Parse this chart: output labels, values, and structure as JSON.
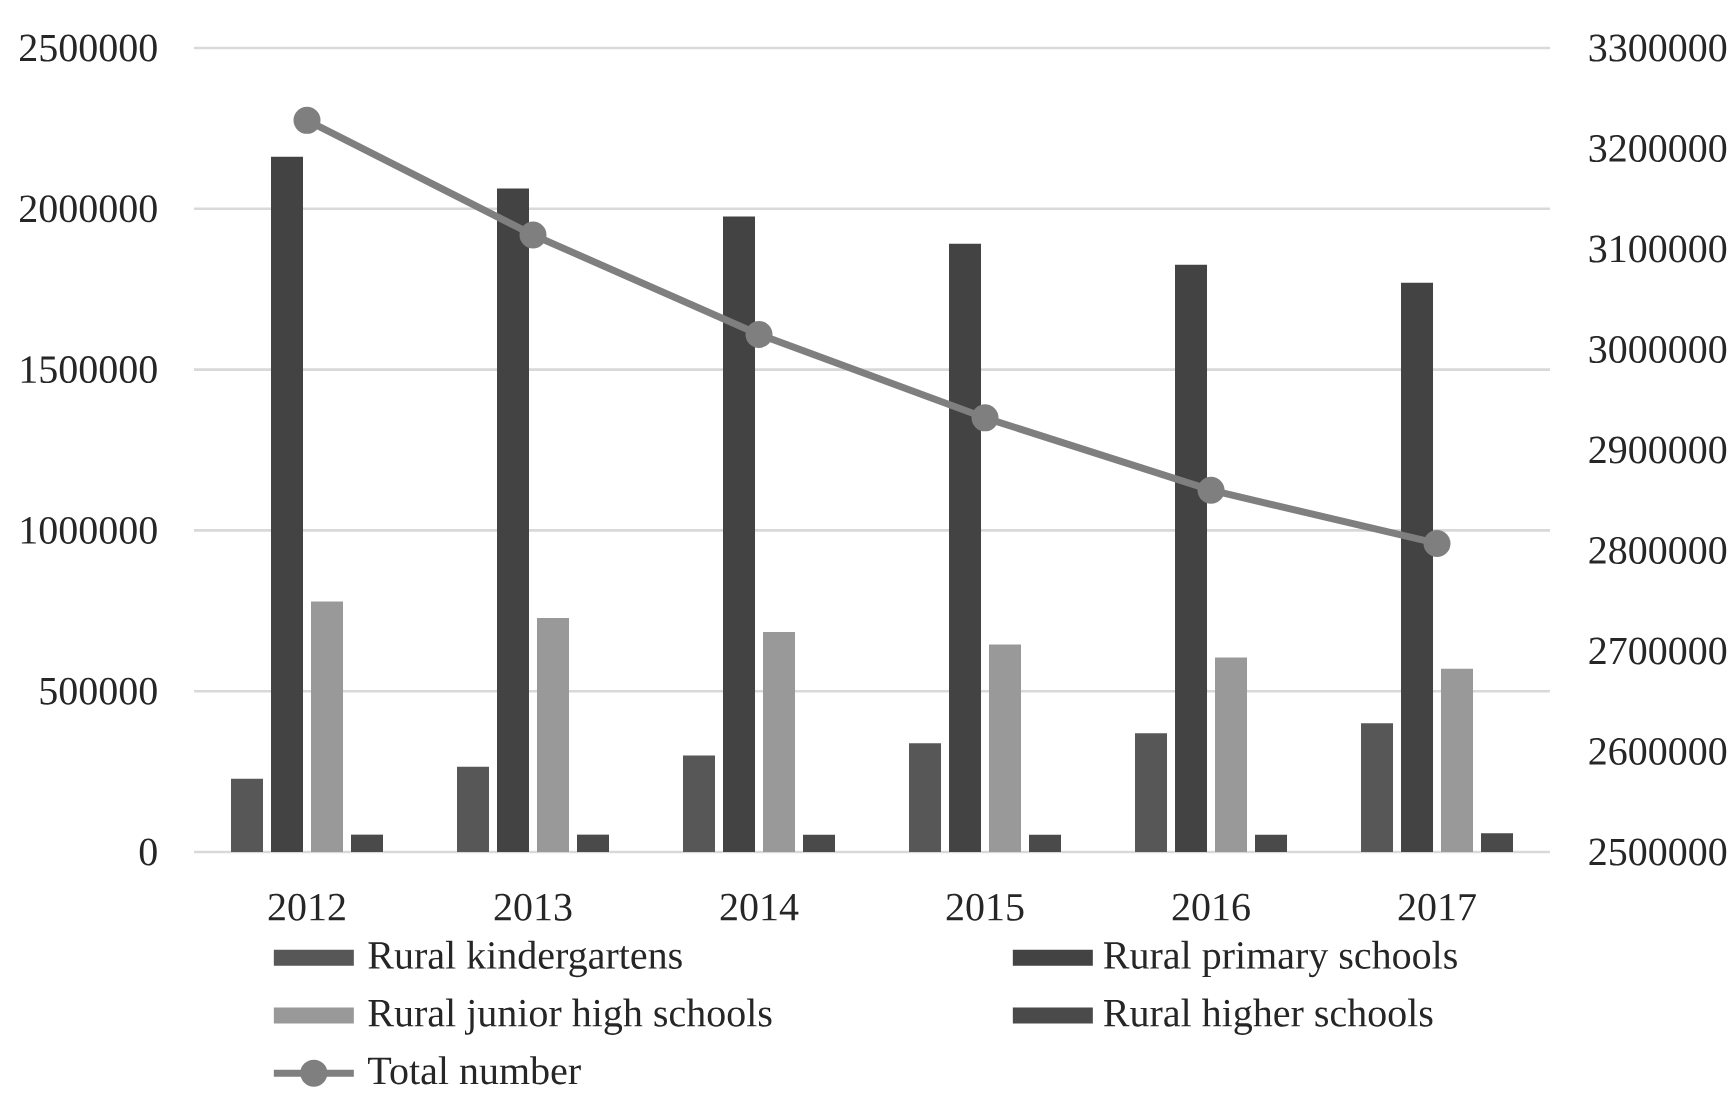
{
  "chart_data": {
    "type": "bar",
    "categories": [
      "2012",
      "2013",
      "2014",
      "2015",
      "2016",
      "2017"
    ],
    "series": [
      {
        "name": "Rural kindergartens",
        "color": "#575757",
        "values": [
          228000,
          265000,
          300000,
          338000,
          369000,
          400000
        ]
      },
      {
        "name": "Rural primary schools",
        "color": "#434343",
        "values": [
          2162000,
          2063000,
          1976000,
          1891000,
          1826000,
          1770000
        ]
      },
      {
        "name": "Rural junior high schools",
        "color": "#999999",
        "values": [
          779000,
          728000,
          684000,
          645000,
          605000,
          570000
        ]
      },
      {
        "name": "Rural higher schools",
        "color": "#4a4a4a",
        "values": [
          54000,
          54000,
          54000,
          54000,
          54000,
          58000
        ]
      },
      {
        "name": "Total number",
        "type": "line",
        "axis": "y2",
        "color": "#7f7f7f",
        "marker": "circle",
        "line_style": "solid",
        "values": [
          3228000,
          3114000,
          3015000,
          2932000,
          2860000,
          2807000
        ]
      }
    ],
    "ylim": [
      0,
      2500000
    ],
    "yticks": [
      0,
      500000,
      1000000,
      1500000,
      2000000,
      2500000
    ],
    "y2lim": [
      2500000,
      3300000
    ],
    "y2ticks": [
      2500000,
      2600000,
      2700000,
      2800000,
      2900000,
      3000000,
      3100000,
      3200000,
      3300000
    ],
    "grid": "y",
    "legend": "bottom"
  }
}
